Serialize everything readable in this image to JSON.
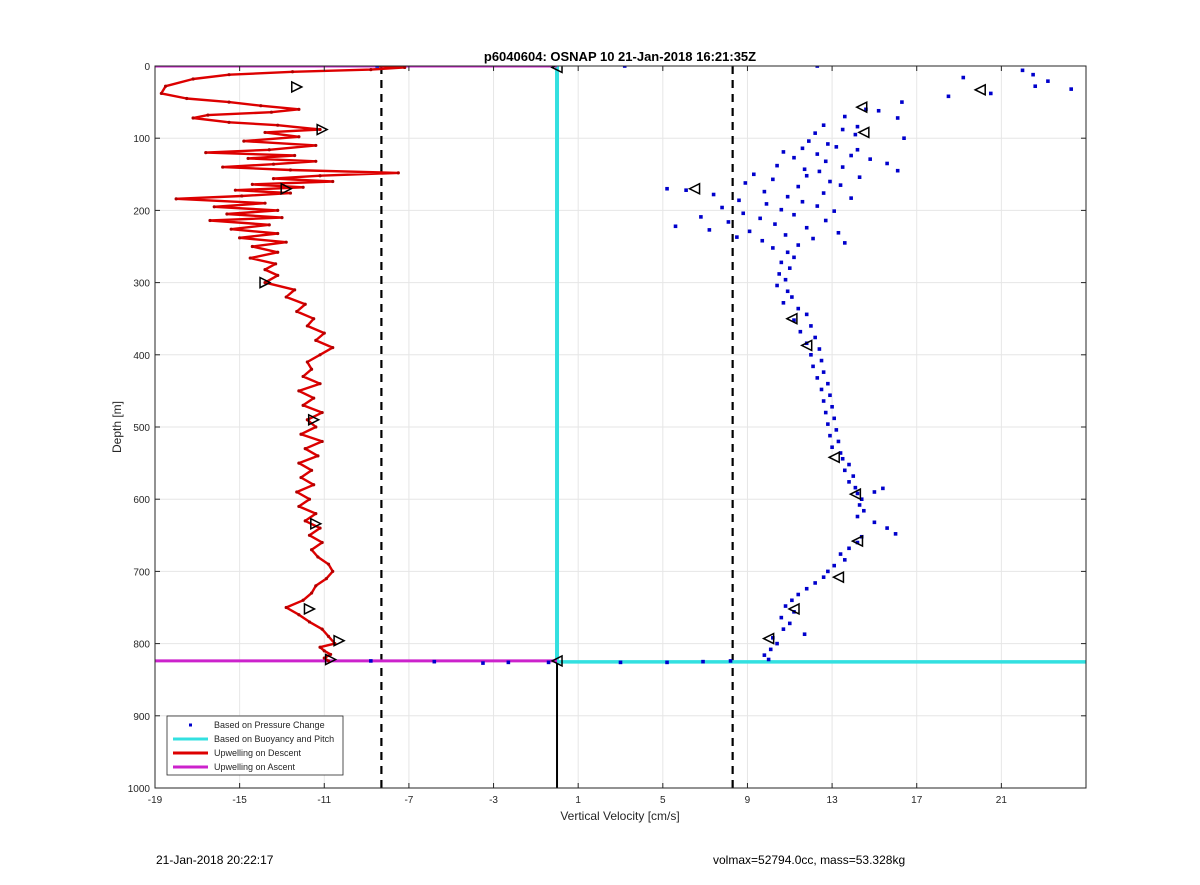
{
  "chart_data": {
    "type": "scatter",
    "title": "p6040604: OSNAP 10 21-Jan-2018 16:21:35Z",
    "xlabel": "Vertical Velocity [cm/s]",
    "ylabel": "Depth [m]",
    "xlim": [
      -19,
      25
    ],
    "ylim": [
      0,
      1000
    ],
    "y_reversed": true,
    "xticks": [
      -19,
      -15,
      -11,
      -7,
      -3,
      1,
      5,
      9,
      13,
      17,
      21
    ],
    "yticks": [
      0,
      100,
      200,
      300,
      400,
      500,
      600,
      700,
      800,
      900,
      1000
    ],
    "grid": true,
    "legend_position": "bottom-left",
    "legend": [
      {
        "label": "Based on Pressure Change",
        "color": "#0000cc",
        "style": "dot"
      },
      {
        "label": "Based on Buoyancy and Pitch",
        "color": "#33e0e0",
        "style": "line"
      },
      {
        "label": "Upwelling on Descent",
        "color": "#dd0000",
        "style": "line"
      },
      {
        "label": "Upwelling on Ascent",
        "color": "#cc22cc",
        "style": "line"
      }
    ],
    "dashed_reference_lines_x": [
      -8.3,
      8.3
    ],
    "max_depth_line_y": 824,
    "series": {
      "upwelling_descent": [
        [
          -8.4,
          0
        ],
        [
          -7.2,
          2
        ],
        [
          -8.8,
          5
        ],
        [
          -12.5,
          8
        ],
        [
          -15.5,
          12
        ],
        [
          -17.2,
          18
        ],
        [
          -18.5,
          28
        ],
        [
          -18.7,
          38
        ],
        [
          -17.5,
          45
        ],
        [
          -15.5,
          50
        ],
        [
          -14,
          55
        ],
        [
          -12.2,
          60
        ],
        [
          -13.5,
          64
        ],
        [
          -16.5,
          68
        ],
        [
          -17.2,
          72
        ],
        [
          -15.5,
          78
        ],
        [
          -13.2,
          82
        ],
        [
          -11.2,
          88
        ],
        [
          -13.8,
          92
        ],
        [
          -12.2,
          98
        ],
        [
          -14.8,
          104
        ],
        [
          -11.4,
          110
        ],
        [
          -13.6,
          116
        ],
        [
          -16.6,
          120
        ],
        [
          -12.4,
          124
        ],
        [
          -14.6,
          128
        ],
        [
          -11.4,
          132
        ],
        [
          -13.4,
          136
        ],
        [
          -15.8,
          140
        ],
        [
          -12.6,
          144
        ],
        [
          -7.5,
          148
        ],
        [
          -11.2,
          152
        ],
        [
          -13.4,
          156
        ],
        [
          -10.6,
          160
        ],
        [
          -14.4,
          164
        ],
        [
          -12,
          168
        ],
        [
          -15.2,
          172
        ],
        [
          -12.6,
          176
        ],
        [
          -14.9,
          180
        ],
        [
          -18,
          184
        ],
        [
          -13.8,
          190
        ],
        [
          -16.2,
          195
        ],
        [
          -13.2,
          200
        ],
        [
          -15.6,
          205
        ],
        [
          -13,
          210
        ],
        [
          -16.4,
          214
        ],
        [
          -13.6,
          220
        ],
        [
          -15.4,
          226
        ],
        [
          -13.2,
          232
        ],
        [
          -15,
          238
        ],
        [
          -12.8,
          244
        ],
        [
          -14.4,
          250
        ],
        [
          -13.2,
          258
        ],
        [
          -14.5,
          266
        ],
        [
          -13.3,
          274
        ],
        [
          -13.8,
          282
        ],
        [
          -13.2,
          290
        ],
        [
          -13.8,
          300
        ],
        [
          -12.4,
          310
        ],
        [
          -12.8,
          320
        ],
        [
          -11.9,
          330
        ],
        [
          -12.3,
          340
        ],
        [
          -11.5,
          350
        ],
        [
          -11.8,
          360
        ],
        [
          -11,
          370
        ],
        [
          -11.4,
          380
        ],
        [
          -10.6,
          390
        ],
        [
          -11.2,
          400
        ],
        [
          -11.8,
          410
        ],
        [
          -11.6,
          420
        ],
        [
          -12,
          430
        ],
        [
          -11.2,
          440
        ],
        [
          -12.2,
          450
        ],
        [
          -11.5,
          460
        ],
        [
          -12,
          470
        ],
        [
          -11.1,
          480
        ],
        [
          -11.8,
          490
        ],
        [
          -11.4,
          500
        ],
        [
          -12.1,
          510
        ],
        [
          -11.1,
          520
        ],
        [
          -11.9,
          530
        ],
        [
          -11.3,
          540
        ],
        [
          -12.2,
          550
        ],
        [
          -11.6,
          560
        ],
        [
          -12.1,
          570
        ],
        [
          -11.5,
          580
        ],
        [
          -12.3,
          590
        ],
        [
          -11.7,
          600
        ],
        [
          -12.2,
          610
        ],
        [
          -11.4,
          620
        ],
        [
          -11.9,
          630
        ],
        [
          -11.2,
          640
        ],
        [
          -11.7,
          650
        ],
        [
          -11.1,
          660
        ],
        [
          -11.6,
          670
        ],
        [
          -11.3,
          680
        ],
        [
          -10.8,
          690
        ],
        [
          -10.6,
          700
        ],
        [
          -10.9,
          710
        ],
        [
          -11.4,
          720
        ],
        [
          -11.6,
          730
        ],
        [
          -12,
          740
        ],
        [
          -12.8,
          750
        ],
        [
          -12.2,
          760
        ],
        [
          -11.7,
          770
        ],
        [
          -11.1,
          780
        ],
        [
          -10.8,
          790
        ],
        [
          -10.5,
          800
        ],
        [
          -11.2,
          805
        ],
        [
          -11,
          810
        ],
        [
          -10.7,
          815
        ],
        [
          -11,
          820
        ],
        [
          -10.8,
          824
        ]
      ],
      "buoyancy_pitch": [
        [
          0,
          0
        ],
        [
          0,
          824
        ]
      ],
      "pressure_change": [
        [
          -8.5,
          0
        ],
        [
          3.2,
          0
        ],
        [
          12.3,
          0
        ],
        [
          22,
          6
        ],
        [
          22.5,
          12
        ],
        [
          19.2,
          16
        ],
        [
          23.2,
          21
        ],
        [
          22.6,
          28
        ],
        [
          24.3,
          32
        ],
        [
          20.5,
          38
        ],
        [
          16.3,
          50
        ],
        [
          18.5,
          42
        ],
        [
          15.2,
          62
        ],
        [
          14.6,
          60
        ],
        [
          13.6,
          70
        ],
        [
          16.1,
          72
        ],
        [
          12.6,
          82
        ],
        [
          14.2,
          84
        ],
        [
          13.5,
          88
        ],
        [
          12.2,
          93
        ],
        [
          14.1,
          95
        ],
        [
          16.4,
          100
        ],
        [
          11.9,
          104
        ],
        [
          12.8,
          108
        ],
        [
          13.2,
          112
        ],
        [
          11.6,
          114
        ],
        [
          14.2,
          116
        ],
        [
          10.7,
          119
        ],
        [
          12.3,
          122
        ],
        [
          13.9,
          124
        ],
        [
          11.2,
          127
        ],
        [
          14.8,
          129
        ],
        [
          12.7,
          132
        ],
        [
          15.6,
          135
        ],
        [
          10.4,
          138
        ],
        [
          13.5,
          140
        ],
        [
          11.7,
          143
        ],
        [
          16.1,
          145
        ],
        [
          12.4,
          146
        ],
        [
          9.3,
          150
        ],
        [
          11.8,
          152
        ],
        [
          14.3,
          154
        ],
        [
          10.2,
          157
        ],
        [
          12.9,
          160
        ],
        [
          8.9,
          162
        ],
        [
          13.4,
          165
        ],
        [
          11.4,
          167
        ],
        [
          5.2,
          170
        ],
        [
          6.1,
          172
        ],
        [
          9.8,
          174
        ],
        [
          12.6,
          176
        ],
        [
          7.4,
          178
        ],
        [
          10.9,
          181
        ],
        [
          13.9,
          183
        ],
        [
          8.6,
          186
        ],
        [
          11.6,
          188
        ],
        [
          9.9,
          191
        ],
        [
          12.3,
          194
        ],
        [
          7.8,
          196
        ],
        [
          10.6,
          199
        ],
        [
          13.1,
          201
        ],
        [
          8.8,
          204
        ],
        [
          11.2,
          206
        ],
        [
          6.8,
          209
        ],
        [
          9.6,
          211
        ],
        [
          12.7,
          214
        ],
        [
          8.1,
          216
        ],
        [
          10.3,
          219
        ],
        [
          5.6,
          222
        ],
        [
          11.8,
          224
        ],
        [
          7.2,
          227
        ],
        [
          9.1,
          229
        ],
        [
          13.3,
          231
        ],
        [
          10.8,
          234
        ],
        [
          8.5,
          237
        ],
        [
          12.1,
          239
        ],
        [
          9.7,
          242
        ],
        [
          13.6,
          245
        ],
        [
          11.4,
          248
        ],
        [
          10.2,
          252
        ],
        [
          10.9,
          258
        ],
        [
          11.2,
          265
        ],
        [
          10.6,
          272
        ],
        [
          11,
          280
        ],
        [
          10.5,
          288
        ],
        [
          10.8,
          296
        ],
        [
          10.4,
          304
        ],
        [
          10.9,
          312
        ],
        [
          11.1,
          320
        ],
        [
          10.7,
          328
        ],
        [
          11.4,
          336
        ],
        [
          11.8,
          344
        ],
        [
          11.2,
          352
        ],
        [
          12,
          360
        ],
        [
          11.5,
          368
        ],
        [
          12.2,
          376
        ],
        [
          11.8,
          384
        ],
        [
          12.4,
          392
        ],
        [
          12,
          400
        ],
        [
          12.5,
          408
        ],
        [
          12.1,
          416
        ],
        [
          12.6,
          424
        ],
        [
          12.3,
          432
        ],
        [
          12.8,
          440
        ],
        [
          12.5,
          448
        ],
        [
          12.9,
          456
        ],
        [
          12.6,
          464
        ],
        [
          13,
          472
        ],
        [
          12.7,
          480
        ],
        [
          13.1,
          488
        ],
        [
          12.8,
          496
        ],
        [
          13.2,
          504
        ],
        [
          12.9,
          512
        ],
        [
          13.3,
          520
        ],
        [
          13,
          528
        ],
        [
          13.4,
          536
        ],
        [
          13.5,
          544
        ],
        [
          13.8,
          552
        ],
        [
          13.6,
          560
        ],
        [
          14,
          568
        ],
        [
          13.8,
          576
        ],
        [
          14.1,
          584
        ],
        [
          15.4,
          585
        ],
        [
          15,
          590
        ],
        [
          14.2,
          592
        ],
        [
          14.4,
          600
        ],
        [
          14.3,
          608
        ],
        [
          14.5,
          616
        ],
        [
          14.2,
          624
        ],
        [
          15,
          632
        ],
        [
          15.6,
          640
        ],
        [
          16,
          648
        ],
        [
          14.4,
          652
        ],
        [
          14.2,
          660
        ],
        [
          13.8,
          668
        ],
        [
          13.4,
          676
        ],
        [
          13.6,
          684
        ],
        [
          13.1,
          692
        ],
        [
          12.8,
          700
        ],
        [
          12.6,
          708
        ],
        [
          12.2,
          716
        ],
        [
          11.8,
          724
        ],
        [
          11.4,
          732
        ],
        [
          11.1,
          740
        ],
        [
          10.8,
          748
        ],
        [
          11.2,
          756
        ],
        [
          10.6,
          764
        ],
        [
          11,
          772
        ],
        [
          10.7,
          780
        ],
        [
          11.7,
          787
        ],
        [
          10.2,
          792
        ],
        [
          10.4,
          800
        ],
        [
          10.1,
          808
        ],
        [
          9.8,
          816
        ],
        [
          10,
          822
        ],
        [
          8.2,
          824
        ],
        [
          6.9,
          825
        ],
        [
          5.2,
          826
        ],
        [
          3,
          826
        ],
        [
          -0.4,
          826
        ],
        [
          -2.3,
          826
        ],
        [
          -3.5,
          827
        ],
        [
          -5.8,
          825
        ],
        [
          -8.8,
          824
        ]
      ],
      "upwelling_ascent": [
        [
          -19,
          0
        ],
        [
          0,
          0
        ],
        [
          -19,
          824
        ],
        [
          0,
          824
        ]
      ],
      "descent_markers": [
        [
          -12.3,
          29
        ],
        [
          -11.1,
          88
        ],
        [
          -12.8,
          170
        ],
        [
          -13.8,
          300
        ],
        [
          -11.5,
          490
        ],
        [
          -11.4,
          634
        ],
        [
          -11.7,
          752
        ],
        [
          -10.3,
          796
        ],
        [
          -10.7,
          822
        ]
      ],
      "ascent_markers": [
        [
          0,
          2
        ],
        [
          6.5,
          170
        ],
        [
          14.4,
          57
        ],
        [
          14.5,
          92
        ],
        [
          20,
          33
        ],
        [
          11.1,
          350
        ],
        [
          11.8,
          387
        ],
        [
          13.1,
          542
        ],
        [
          14.1,
          593
        ],
        [
          14.2,
          658
        ],
        [
          13.3,
          708
        ],
        [
          11.2,
          752
        ],
        [
          10,
          793
        ],
        [
          0,
          824
        ]
      ]
    }
  },
  "footer": {
    "left": "21-Jan-2018 20:22:17",
    "right": "volmax=52794.0cc, mass=53.328kg"
  }
}
